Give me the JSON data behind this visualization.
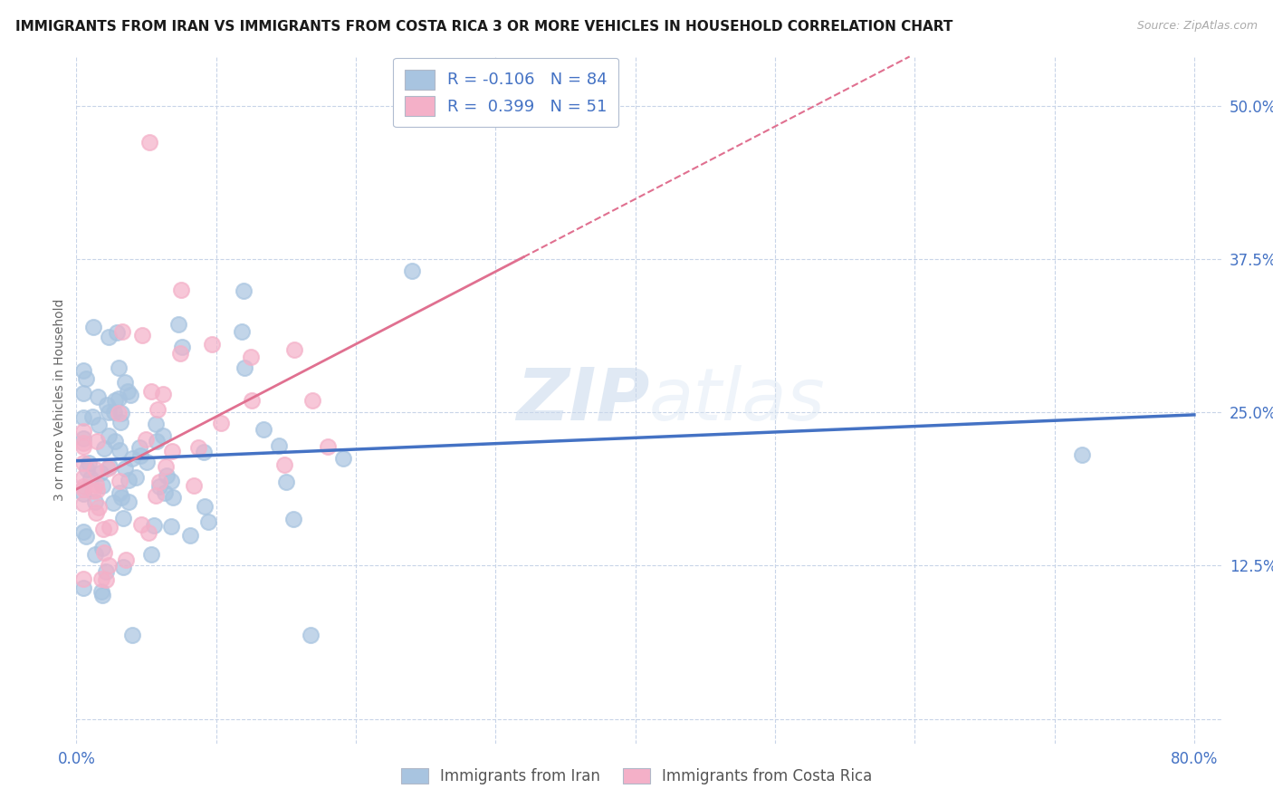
{
  "title": "IMMIGRANTS FROM IRAN VS IMMIGRANTS FROM COSTA RICA 3 OR MORE VEHICLES IN HOUSEHOLD CORRELATION CHART",
  "source": "Source: ZipAtlas.com",
  "ylabel": "3 or more Vehicles in Household",
  "x_ticks": [
    0.0,
    0.1,
    0.2,
    0.3,
    0.4,
    0.5,
    0.6,
    0.7,
    0.8
  ],
  "y_ticks": [
    0.0,
    0.125,
    0.25,
    0.375,
    0.5
  ],
  "xlim": [
    0.0,
    0.82
  ],
  "ylim": [
    -0.02,
    0.54
  ],
  "legend_iran_label": "Immigrants from Iran",
  "legend_cr_label": "Immigrants from Costa Rica",
  "R_iran": -0.106,
  "N_iran": 84,
  "R_cr": 0.399,
  "N_cr": 51,
  "iran_color": "#a8c4e0",
  "cr_color": "#f4b0c8",
  "iran_line_color": "#4472c4",
  "cr_line_color": "#e07090",
  "background_color": "#ffffff",
  "grid_color": "#c8d4e8",
  "watermark_zip": "ZIP",
  "watermark_atlas": "atlas",
  "title_fontsize": 11,
  "tick_fontsize": 12,
  "legend_fontsize": 13
}
